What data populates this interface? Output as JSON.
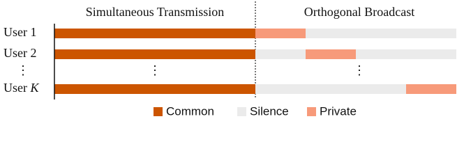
{
  "header": {
    "left": "Simultaneous Transmission",
    "right": "Orthogonal Broadcast"
  },
  "rows": [
    {
      "label": "User 1"
    },
    {
      "label": "User 2"
    },
    {
      "label_prefix": "User",
      "label_var": "K"
    }
  ],
  "ellipsis": "⋮",
  "legend": [
    {
      "label": "Common"
    },
    {
      "label": "Silence"
    },
    {
      "label": "Private"
    }
  ]
}
